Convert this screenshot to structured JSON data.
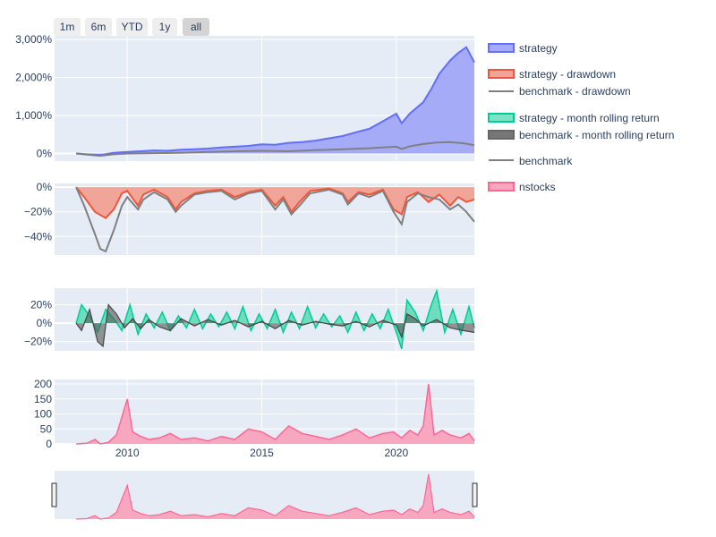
{
  "range_selector": {
    "buttons": [
      {
        "label": "1m",
        "active": false
      },
      {
        "label": "6m",
        "active": false
      },
      {
        "label": "YTD",
        "active": false
      },
      {
        "label": "1y",
        "active": false
      },
      {
        "label": "all",
        "active": true
      }
    ]
  },
  "legend": {
    "items": [
      {
        "label": "strategy",
        "color": "#636efa",
        "kind": "area"
      },
      {
        "label": "strategy - drawdown",
        "color": "#ef553b",
        "kind": "area"
      },
      {
        "label": "benchmark - drawdown",
        "color": "#808080",
        "kind": "line"
      },
      {
        "label": "strategy - month rolling return",
        "color": "#00cc96",
        "kind": "area"
      },
      {
        "label": "benchmark - month rolling return",
        "color": "#666666",
        "kind": "area"
      },
      {
        "label": "benchmark",
        "color": "#808080",
        "kind": "line"
      },
      {
        "label": "nstocks",
        "color": "#ff6692",
        "kind": "area"
      }
    ]
  },
  "colors": {
    "plot_bg": "#e5ecf6",
    "grid": "#ffffff",
    "strategy": "#636efa",
    "strategy_fill": "#a5abf7",
    "drawdown": "#ef553b",
    "drawdown_fill": "#f0a598",
    "benchmark": "#808080",
    "rolling": "#00cc96",
    "rolling_bench": "#444444",
    "nstocks": "#ff6692",
    "nstocks_fill": "#f7a8c0"
  },
  "chart_data": [
    {
      "type": "area",
      "panel": "equity",
      "ylim": [
        -200,
        3100
      ],
      "yticks": [
        0,
        1000,
        2000,
        3000
      ],
      "ytick_labels": [
        "0%",
        "1,000%",
        "2,000%",
        "3,000%"
      ],
      "series": [
        {
          "name": "strategy",
          "x": [
            2008.1,
            2008.5,
            2009.0,
            2009.5,
            2010.0,
            2010.5,
            2011.0,
            2011.5,
            2012.0,
            2012.5,
            2013.0,
            2013.5,
            2014.0,
            2014.5,
            2015.0,
            2015.5,
            2016.0,
            2016.5,
            2017.0,
            2017.5,
            2018.0,
            2018.5,
            2019.0,
            2019.5,
            2020.0,
            2020.2,
            2020.5,
            2021.0,
            2021.3,
            2021.6,
            2022.0,
            2022.3,
            2022.6,
            2022.9
          ],
          "values": [
            0,
            -20,
            -40,
            20,
            40,
            60,
            80,
            70,
            100,
            110,
            130,
            160,
            180,
            200,
            240,
            230,
            280,
            300,
            340,
            400,
            460,
            560,
            650,
            850,
            1050,
            800,
            1050,
            1350,
            1700,
            2100,
            2450,
            2650,
            2800,
            2400
          ]
        },
        {
          "name": "benchmark",
          "x": [
            2008.1,
            2008.5,
            2009.0,
            2009.5,
            2010.0,
            2011.0,
            2012.0,
            2013.0,
            2014.0,
            2015.0,
            2016.0,
            2017.0,
            2018.0,
            2019.0,
            2020.0,
            2020.2,
            2020.5,
            2021.0,
            2021.5,
            2022.0,
            2022.5,
            2022.9
          ],
          "values": [
            0,
            -30,
            -60,
            -20,
            0,
            10,
            20,
            40,
            60,
            70,
            60,
            90,
            110,
            140,
            180,
            120,
            190,
            250,
            290,
            300,
            270,
            220
          ]
        }
      ]
    },
    {
      "type": "area",
      "panel": "drawdown",
      "ylim": [
        -55,
        3
      ],
      "yticks": [
        0,
        -20,
        -40
      ],
      "ytick_labels": [
        "0%",
        "−20%",
        "−40%"
      ],
      "series": [
        {
          "name": "strategy - drawdown",
          "x": [
            2008.1,
            2008.4,
            2008.8,
            2009.2,
            2009.5,
            2009.8,
            2010.0,
            2010.4,
            2010.6,
            2011.0,
            2011.5,
            2011.8,
            2012.0,
            2012.5,
            2013.0,
            2013.5,
            2014.0,
            2014.5,
            2015.0,
            2015.5,
            2015.8,
            2016.1,
            2016.4,
            2016.8,
            2017.5,
            2018.0,
            2018.2,
            2018.6,
            2019.0,
            2019.5,
            2019.9,
            2020.2,
            2020.4,
            2020.8,
            2021.2,
            2021.6,
            2022.0,
            2022.3,
            2022.6,
            2022.9
          ],
          "values": [
            0,
            -8,
            -20,
            -25,
            -18,
            -5,
            -3,
            -15,
            -6,
            -2,
            -8,
            -18,
            -12,
            -5,
            -3,
            -2,
            -8,
            -4,
            -2,
            -15,
            -8,
            -20,
            -12,
            -3,
            -1,
            -5,
            -12,
            -4,
            -6,
            -2,
            -18,
            -22,
            -8,
            -4,
            -12,
            -6,
            -15,
            -8,
            -12,
            -10
          ]
        },
        {
          "name": "benchmark - drawdown",
          "x": [
            2008.1,
            2008.4,
            2008.8,
            2009.0,
            2009.2,
            2009.5,
            2009.8,
            2010.0,
            2010.4,
            2010.6,
            2011.0,
            2011.5,
            2011.8,
            2012.0,
            2012.5,
            2013.0,
            2013.5,
            2014.0,
            2014.5,
            2015.0,
            2015.5,
            2015.8,
            2016.1,
            2016.4,
            2016.8,
            2017.5,
            2018.0,
            2018.2,
            2018.6,
            2019.0,
            2019.5,
            2019.9,
            2020.2,
            2020.4,
            2020.8,
            2021.2,
            2021.6,
            2022.0,
            2022.3,
            2022.6,
            2022.9
          ],
          "values": [
            0,
            -15,
            -38,
            -50,
            -52,
            -35,
            -15,
            -8,
            -18,
            -10,
            -4,
            -10,
            -20,
            -15,
            -6,
            -4,
            -3,
            -10,
            -5,
            -3,
            -18,
            -10,
            -22,
            -15,
            -5,
            -2,
            -6,
            -14,
            -5,
            -8,
            -3,
            -20,
            -30,
            -12,
            -5,
            -8,
            -10,
            -18,
            -14,
            -20,
            -28
          ]
        }
      ]
    },
    {
      "type": "area",
      "panel": "rolling_return",
      "ylim": [
        -30,
        38
      ],
      "yticks": [
        20,
        0,
        -20
      ],
      "ytick_labels": [
        "20%",
        "0%",
        "−20%"
      ],
      "series": [
        {
          "name": "strategy - month rolling return",
          "x": [
            2008.1,
            2008.3,
            2008.6,
            2008.9,
            2009.2,
            2009.5,
            2009.8,
            2010.1,
            2010.4,
            2010.7,
            2011.0,
            2011.3,
            2011.6,
            2011.9,
            2012.2,
            2012.5,
            2012.8,
            2013.1,
            2013.4,
            2013.7,
            2014.0,
            2014.3,
            2014.6,
            2014.9,
            2015.2,
            2015.5,
            2015.8,
            2016.1,
            2016.4,
            2016.7,
            2017.0,
            2017.3,
            2017.6,
            2017.9,
            2018.2,
            2018.5,
            2018.8,
            2019.1,
            2019.4,
            2019.7,
            2020.0,
            2020.2,
            2020.4,
            2020.7,
            2021.0,
            2021.3,
            2021.5,
            2021.8,
            2022.1,
            2022.4,
            2022.7,
            2022.9
          ],
          "values": [
            0,
            20,
            8,
            -10,
            15,
            5,
            -8,
            20,
            -12,
            10,
            -5,
            12,
            -8,
            8,
            -5,
            15,
            -6,
            10,
            -4,
            12,
            -6,
            18,
            -8,
            10,
            -6,
            15,
            -10,
            12,
            -6,
            18,
            -5,
            10,
            -4,
            8,
            -10,
            12,
            -8,
            10,
            -6,
            15,
            -10,
            -28,
            25,
            12,
            -8,
            20,
            35,
            -10,
            15,
            -12,
            18,
            -5
          ]
        },
        {
          "name": "benchmark - month rolling return",
          "x": [
            2008.1,
            2008.3,
            2008.6,
            2008.9,
            2009.1,
            2009.3,
            2009.6,
            2009.9,
            2010.2,
            2010.5,
            2010.8,
            2011.2,
            2011.6,
            2012.0,
            2012.5,
            2013.0,
            2013.5,
            2014.0,
            2014.5,
            2015.0,
            2015.5,
            2016.0,
            2016.5,
            2017.0,
            2017.5,
            2018.0,
            2018.5,
            2019.0,
            2019.5,
            2020.0,
            2020.2,
            2020.4,
            2020.7,
            2021.0,
            2021.5,
            2022.0,
            2022.5,
            2022.9
          ],
          "values": [
            0,
            -8,
            15,
            -20,
            -25,
            20,
            10,
            -5,
            5,
            -6,
            4,
            -4,
            -8,
            5,
            -3,
            4,
            -2,
            3,
            -4,
            2,
            -6,
            3,
            -2,
            2,
            -1,
            -3,
            2,
            -4,
            3,
            -2,
            -15,
            10,
            5,
            -3,
            4,
            -5,
            -8,
            -10
          ]
        }
      ]
    },
    {
      "type": "area",
      "panel": "nstocks",
      "ylim": [
        0,
        215
      ],
      "yticks": [
        0,
        50,
        100,
        150,
        200
      ],
      "ytick_labels": [
        "0",
        "50",
        "100",
        "150",
        "200"
      ],
      "series": [
        {
          "name": "nstocks",
          "x": [
            2008.1,
            2008.5,
            2008.8,
            2009.0,
            2009.3,
            2009.6,
            2009.8,
            2010.0,
            2010.2,
            2010.5,
            2010.8,
            2011.2,
            2011.6,
            2012.0,
            2012.5,
            2013.0,
            2013.5,
            2014.0,
            2014.5,
            2015.0,
            2015.5,
            2016.0,
            2016.5,
            2017.0,
            2017.5,
            2018.0,
            2018.5,
            2019.0,
            2019.5,
            2019.9,
            2020.2,
            2020.5,
            2020.8,
            2021.0,
            2021.2,
            2021.4,
            2021.7,
            2022.0,
            2022.4,
            2022.7,
            2022.9
          ],
          "values": [
            0,
            2,
            15,
            0,
            5,
            30,
            90,
            150,
            40,
            25,
            15,
            20,
            35,
            15,
            20,
            10,
            25,
            15,
            50,
            40,
            15,
            60,
            35,
            25,
            15,
            30,
            50,
            20,
            35,
            40,
            20,
            45,
            30,
            60,
            200,
            30,
            45,
            30,
            20,
            35,
            10
          ]
        }
      ]
    }
  ],
  "x_axis": {
    "range": [
      2007.3,
      2022.9
    ],
    "ticks": [
      2010,
      2015,
      2020
    ],
    "tick_labels": [
      "2010",
      "2015",
      "2020"
    ]
  }
}
